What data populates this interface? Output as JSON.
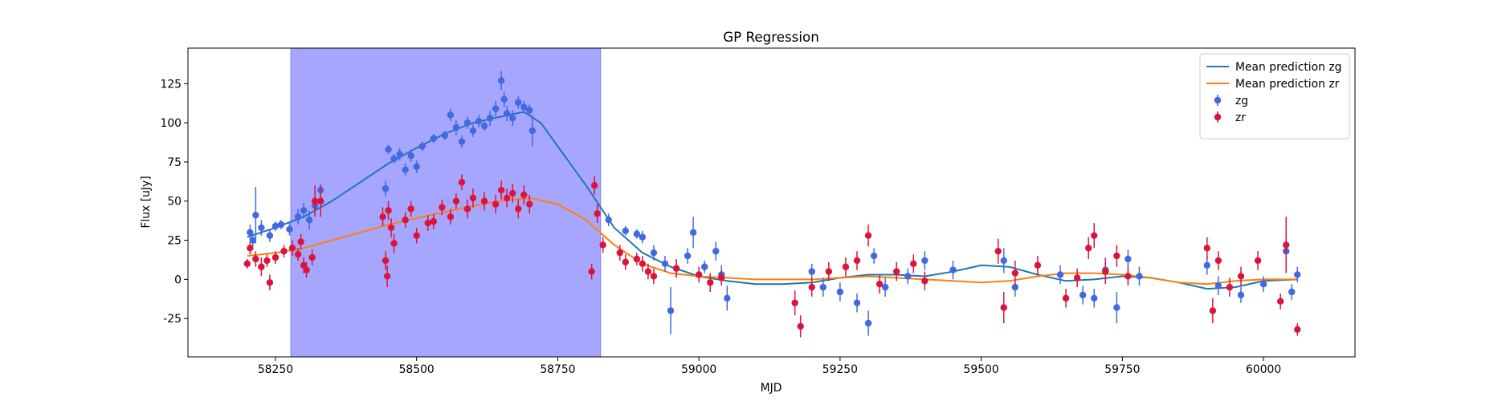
{
  "chart_data": {
    "type": "errorbar",
    "title": "GP Regression",
    "x_label": "MJD",
    "y_label": "Flux [uJy]",
    "xlim": [
      58095,
      60162
    ],
    "ylim": [
      -49.5,
      147.7
    ],
    "xticks": [
      58250,
      58500,
      58750,
      59000,
      59250,
      59500,
      59750,
      60000
    ],
    "yticks": [
      -25,
      0,
      25,
      50,
      75,
      100,
      125
    ],
    "span": [
      58277,
      58826
    ],
    "span_color": "#0000ff",
    "legend": "upper right",
    "series": [
      {
        "name": "Mean prediction zg",
        "kind": "line",
        "color": "#1f77b4",
        "x": [
          58200,
          58250,
          58300,
          58350,
          58400,
          58450,
          58500,
          58550,
          58600,
          58650,
          58690,
          58720,
          58750,
          58800,
          58850,
          58900,
          58950,
          59000,
          59050,
          59100,
          59150,
          59200,
          59250,
          59300,
          59350,
          59400,
          59450,
          59500,
          59550,
          59600,
          59650,
          59700,
          59750,
          59800,
          59850,
          59900,
          59950,
          60000,
          60060
        ],
        "values": [
          27,
          33,
          40,
          50,
          62,
          74,
          84,
          93,
          100,
          104,
          107,
          100,
          85,
          60,
          33,
          17,
          8,
          2,
          -1,
          -3,
          -3,
          -2,
          1,
          3,
          3,
          2,
          5,
          9,
          8,
          3,
          -1,
          0,
          2,
          1,
          -2,
          -6,
          -5,
          -1,
          0
        ]
      },
      {
        "name": "Mean prediction zr",
        "kind": "line",
        "color": "#ff7f0e",
        "x": [
          58200,
          58250,
          58300,
          58350,
          58400,
          58450,
          58500,
          58550,
          58600,
          58650,
          58700,
          58750,
          58800,
          58850,
          58900,
          58950,
          59000,
          59050,
          59100,
          59150,
          59200,
          59250,
          59300,
          59350,
          59400,
          59450,
          59500,
          59550,
          59600,
          59650,
          59700,
          59750,
          59800,
          59850,
          59900,
          59950,
          60000,
          60060
        ],
        "values": [
          15,
          17,
          20,
          25,
          30,
          35,
          39,
          43,
          47,
          50,
          52,
          48,
          38,
          22,
          10,
          4,
          2,
          1,
          0,
          0,
          0,
          1,
          2,
          1,
          0,
          -1,
          -2,
          -1,
          2,
          4,
          4,
          3,
          1,
          -2,
          -3,
          -1,
          0,
          0
        ]
      },
      {
        "name": "zg",
        "kind": "errorbar",
        "color": "#4169e1",
        "x": [
          58205,
          58210,
          58215,
          58225,
          58240,
          58250,
          58260,
          58275,
          58290,
          58300,
          58310,
          58320,
          58330,
          58445,
          58450,
          58460,
          58470,
          58480,
          58490,
          58500,
          58510,
          58530,
          58550,
          58560,
          58570,
          58580,
          58590,
          58600,
          58610,
          58620,
          58630,
          58640,
          58650,
          58655,
          58660,
          58670,
          58680,
          58690,
          58700,
          58705,
          58840,
          58870,
          58890,
          58900,
          58920,
          58940,
          58950,
          58960,
          58980,
          58990,
          59010,
          59030,
          59040,
          59050,
          59200,
          59220,
          59250,
          59280,
          59300,
          59310,
          59330,
          59370,
          59400,
          59450,
          59540,
          59560,
          59640,
          59680,
          59700,
          59720,
          59740,
          59760,
          59780,
          59900,
          59920,
          59960,
          60000,
          60040,
          60050,
          60060
        ],
        "values": [
          30,
          25,
          41,
          33,
          28,
          34,
          35,
          32,
          40,
          44,
          38,
          47,
          57,
          58,
          83,
          77,
          80,
          70,
          79,
          72,
          85,
          90,
          92,
          105,
          97,
          88,
          100,
          95,
          101,
          98,
          103,
          109,
          127,
          115,
          106,
          103,
          113,
          110,
          108,
          95,
          38,
          31,
          29,
          27,
          17,
          10,
          -20,
          7,
          15,
          30,
          8,
          18,
          3,
          -12,
          5,
          -5,
          -8,
          -15,
          -28,
          15,
          -5,
          2,
          12,
          6,
          12,
          -5,
          3,
          -10,
          -12,
          6,
          -18,
          13,
          2,
          9,
          -4,
          -10,
          -3,
          18,
          -8,
          3
        ],
        "errors": [
          5,
          4,
          18,
          5,
          4,
          3,
          3,
          4,
          5,
          5,
          6,
          6,
          4,
          5,
          3,
          3,
          4,
          4,
          4,
          4,
          3,
          3,
          3,
          4,
          5,
          4,
          4,
          4,
          4,
          3,
          5,
          5,
          6,
          5,
          5,
          5,
          4,
          4,
          4,
          10,
          4,
          3,
          3,
          4,
          5,
          5,
          15,
          5,
          5,
          10,
          4,
          6,
          6,
          8,
          5,
          6,
          6,
          6,
          8,
          5,
          6,
          5,
          6,
          6,
          8,
          6,
          6,
          6,
          6,
          8,
          10,
          6,
          6,
          6,
          6,
          5,
          5,
          5,
          5,
          5
        ]
      },
      {
        "name": "zr",
        "kind": "errorbar",
        "color": "#dc143c",
        "x": [
          58200,
          58205,
          58215,
          58225,
          58235,
          58240,
          58250,
          58265,
          58280,
          58290,
          58295,
          58300,
          58305,
          58315,
          58320,
          58330,
          58440,
          58445,
          58448,
          58450,
          58455,
          58460,
          58480,
          58490,
          58500,
          58520,
          58530,
          58545,
          58560,
          58570,
          58580,
          58590,
          58600,
          58620,
          58640,
          58650,
          58660,
          58670,
          58680,
          58690,
          58700,
          58810,
          58815,
          58820,
          58830,
          58860,
          58870,
          58890,
          58900,
          58910,
          58920,
          58960,
          59000,
          59020,
          59040,
          59170,
          59180,
          59200,
          59230,
          59260,
          59280,
          59300,
          59320,
          59350,
          59380,
          59400,
          59530,
          59540,
          59560,
          59600,
          59650,
          59670,
          59690,
          59700,
          59720,
          59740,
          59760,
          59900,
          59910,
          59920,
          59940,
          59960,
          59990,
          60030,
          60040,
          60060
        ],
        "values": [
          10,
          20,
          13,
          8,
          12,
          -2,
          14,
          18,
          20,
          16,
          24,
          9,
          6,
          14,
          50,
          50,
          40,
          12,
          2,
          44,
          33,
          23,
          38,
          45,
          28,
          36,
          37,
          46,
          40,
          50,
          62,
          45,
          52,
          50,
          48,
          57,
          52,
          55,
          45,
          54,
          48,
          5,
          60,
          42,
          22,
          17,
          11,
          13,
          10,
          5,
          2,
          7,
          3,
          -2,
          1,
          -15,
          -30,
          -5,
          5,
          8,
          12,
          28,
          -3,
          5,
          10,
          -1,
          18,
          -18,
          4,
          9,
          -12,
          1,
          20,
          28,
          5,
          15,
          2,
          20,
          -20,
          12,
          -5,
          2,
          12,
          -14,
          22,
          -32
        ],
        "errors": [
          3,
          4,
          5,
          6,
          4,
          5,
          4,
          4,
          5,
          4,
          5,
          5,
          5,
          5,
          10,
          10,
          6,
          6,
          7,
          6,
          6,
          6,
          5,
          5,
          5,
          5,
          5,
          5,
          5,
          5,
          5,
          6,
          6,
          6,
          6,
          6,
          6,
          6,
          6,
          6,
          6,
          5,
          6,
          6,
          5,
          5,
          5,
          4,
          5,
          5,
          5,
          6,
          5,
          6,
          5,
          8,
          7,
          6,
          6,
          6,
          6,
          7,
          6,
          6,
          6,
          6,
          8,
          10,
          8,
          6,
          6,
          6,
          7,
          8,
          8,
          7,
          6,
          7,
          8,
          6,
          6,
          6,
          6,
          5,
          18,
          4
        ]
      }
    ]
  }
}
